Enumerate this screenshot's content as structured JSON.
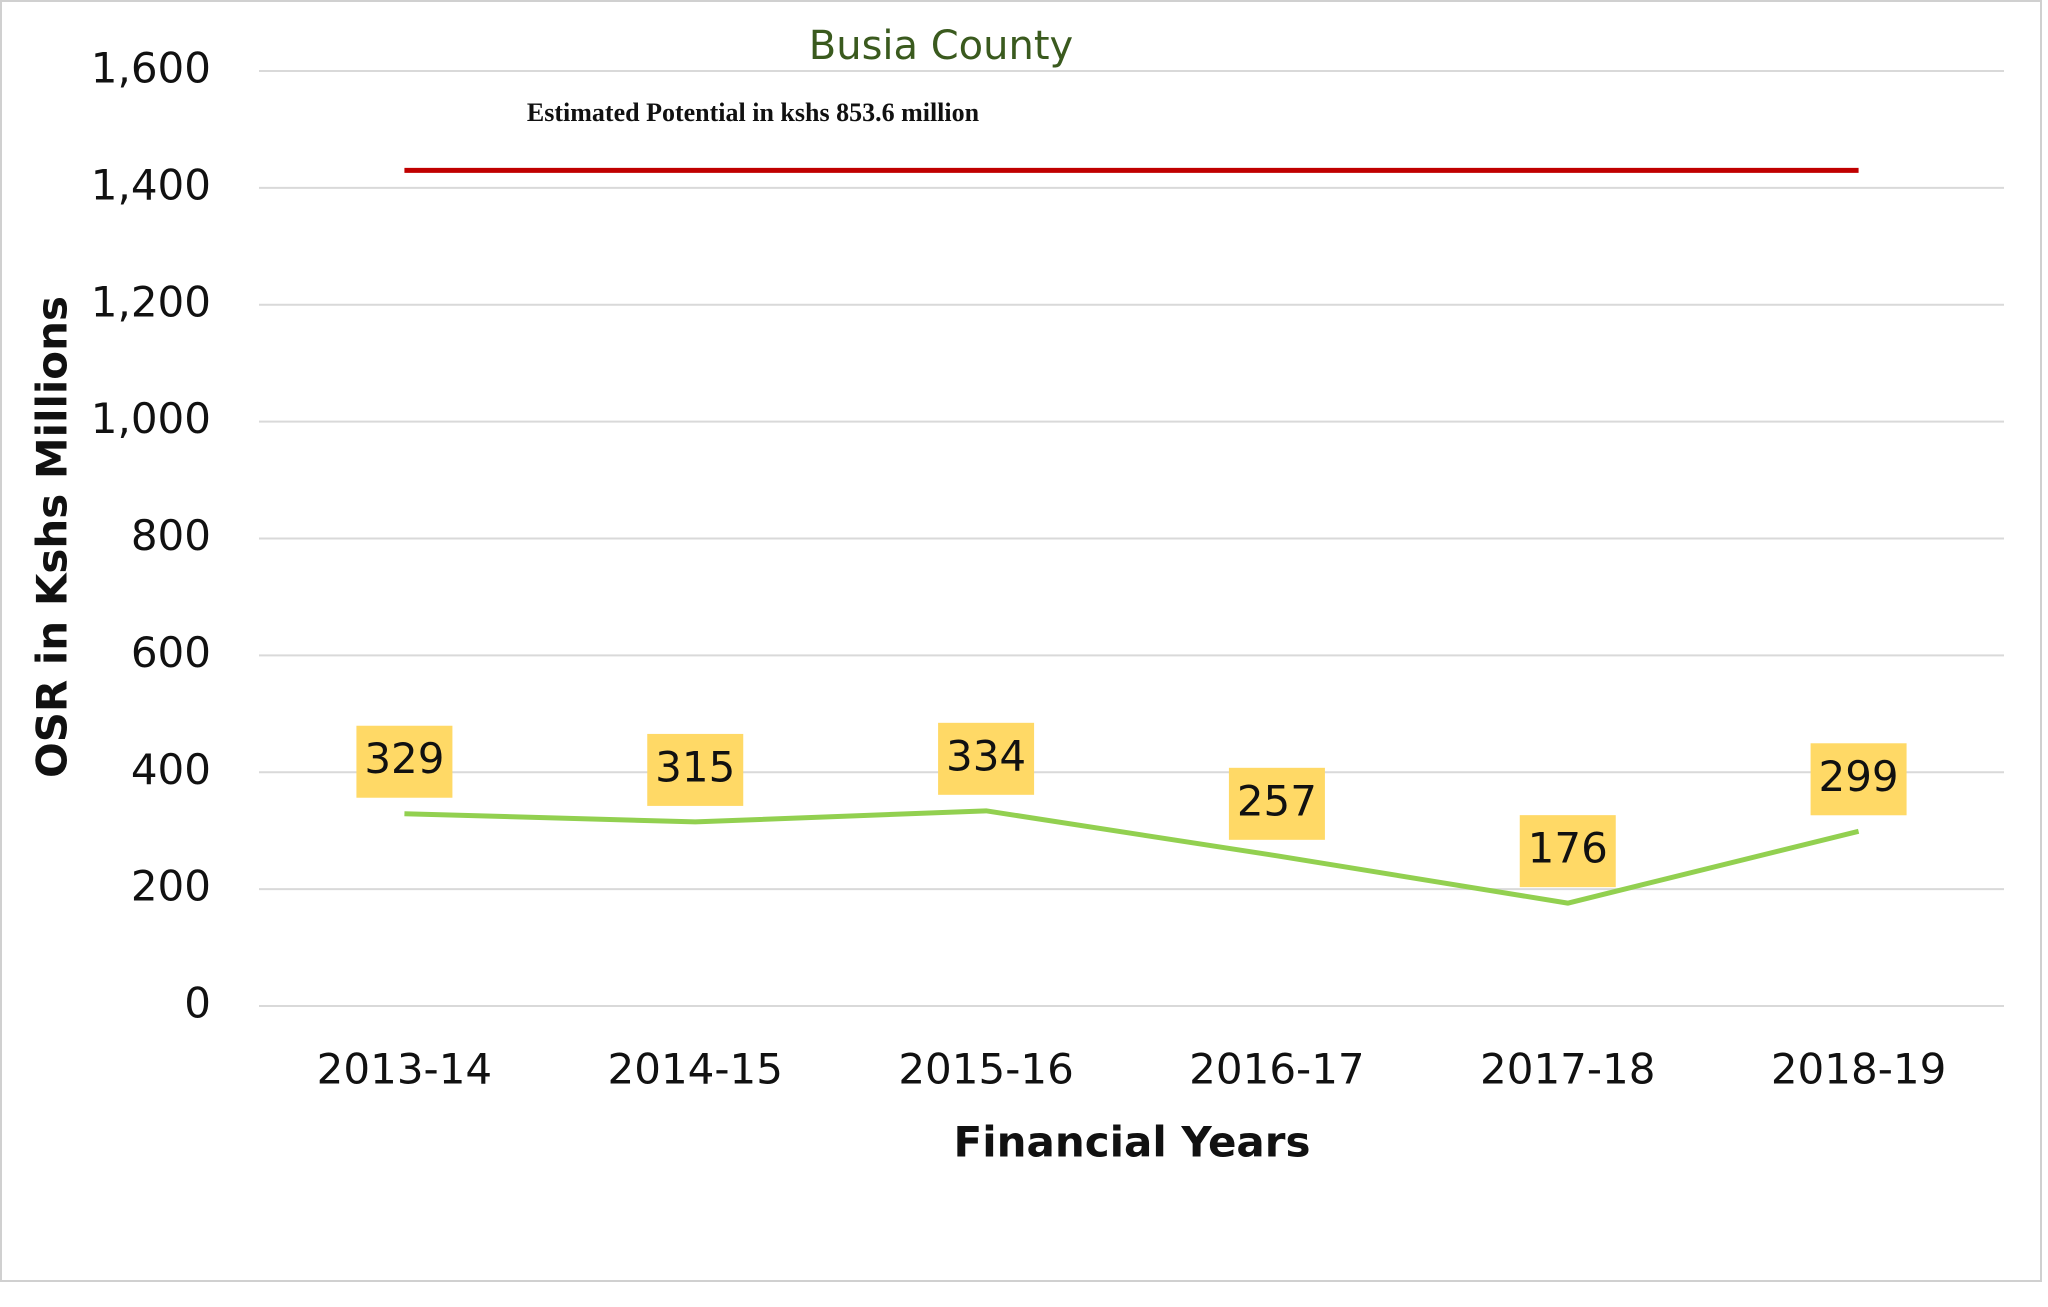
{
  "chart_data": {
    "type": "line",
    "title": "Busia County",
    "annotation": "Estimated Potential in kshs 853.6 million",
    "x_label": "Financial Years",
    "y_label": "OSR in Kshs Millions",
    "categories": [
      "2013-14",
      "2014-15",
      "2015-16",
      "2016-17",
      "2017-18",
      "2018-19"
    ],
    "series": [
      {
        "color": "#c00000",
        "values": [
          1430,
          1430,
          1430,
          1430,
          1430,
          1430
        ]
      },
      {
        "color": "#92d050",
        "values": [
          329,
          315,
          334,
          257,
          176,
          299
        ],
        "data_labels": true
      }
    ],
    "label_color": "#ffd966",
    "ylim": [
      0,
      1600
    ],
    "yticks": [
      0,
      200,
      400,
      600,
      800,
      {
        "value": 1000,
        "label": "1,000"
      },
      {
        "value": 1200,
        "label": "1,200"
      },
      {
        "value": 1400,
        "label": "1,400"
      },
      {
        "value": 1600,
        "label": "1,600"
      }
    ],
    "grid": true
  }
}
